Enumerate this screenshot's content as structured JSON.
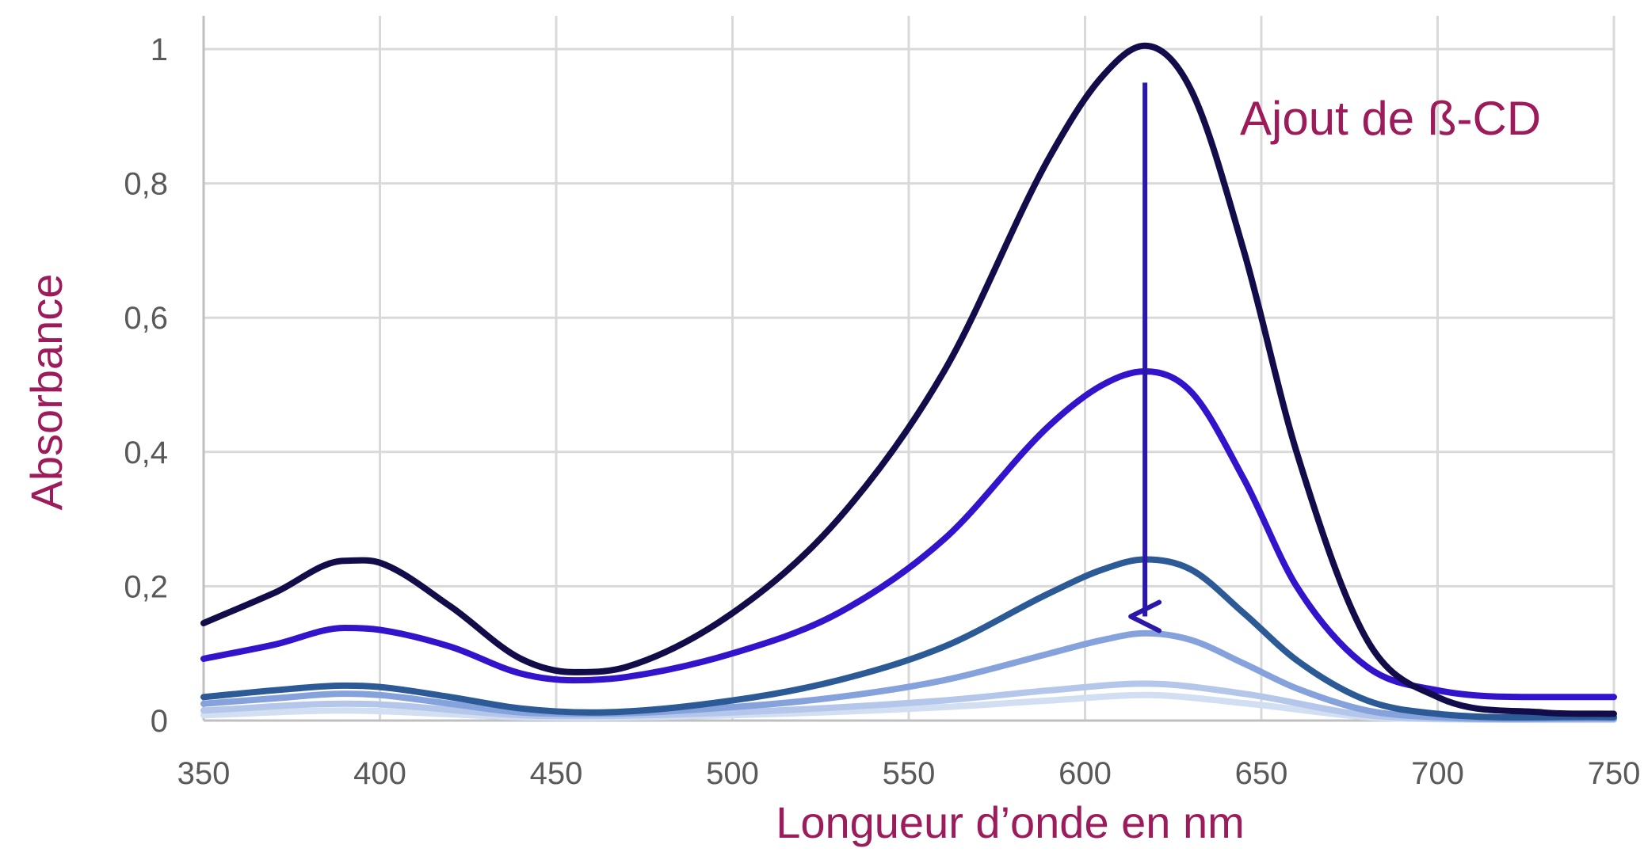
{
  "chart_data": {
    "type": "line",
    "xlabel": "Longueur d’onde en nm",
    "ylabel": "Absorbance",
    "xlim": [
      350,
      750
    ],
    "ylim": [
      0,
      1
    ],
    "x_ticks": [
      "350",
      "400",
      "450",
      "500",
      "550",
      "600",
      "650",
      "700",
      "750"
    ],
    "y_ticks": [
      "0",
      "0,2",
      "0,4",
      "0,6",
      "0,8",
      "1"
    ],
    "grid": true,
    "legend": "none",
    "annotation": {
      "text": "Ajout de ß-CD",
      "arrow_from": [
        617,
        0.95
      ],
      "arrow_to": [
        617,
        0.155
      ]
    },
    "colors": {
      "label": "#9c1b5a",
      "arrow": "#2a18a8",
      "tick": "#595959",
      "grid": "#d9d9d9"
    },
    "series": [
      {
        "color": "#120c4a",
        "x": [
          350,
          370,
          390,
          400,
          420,
          440,
          455,
          470,
          500,
          530,
          560,
          590,
          605,
          617,
          630,
          645,
          660,
          680,
          700,
          730,
          750
        ],
        "y": [
          0.145,
          0.19,
          0.238,
          0.235,
          0.17,
          0.092,
          0.072,
          0.08,
          0.16,
          0.3,
          0.52,
          0.84,
          0.96,
          1.005,
          0.94,
          0.7,
          0.4,
          0.12,
          0.035,
          0.012,
          0.01
        ]
      },
      {
        "color": "#3413cc",
        "x": [
          350,
          370,
          390,
          400,
          420,
          440,
          455,
          470,
          500,
          530,
          560,
          590,
          605,
          617,
          630,
          645,
          660,
          680,
          700,
          730,
          750
        ],
        "y": [
          0.092,
          0.113,
          0.138,
          0.135,
          0.11,
          0.07,
          0.06,
          0.065,
          0.1,
          0.16,
          0.27,
          0.44,
          0.5,
          0.52,
          0.49,
          0.36,
          0.2,
          0.08,
          0.045,
          0.035,
          0.035
        ]
      },
      {
        "color": "#2c5a96",
        "x": [
          350,
          370,
          390,
          400,
          420,
          440,
          460,
          500,
          530,
          560,
          590,
          605,
          617,
          630,
          645,
          660,
          680,
          700,
          750
        ],
        "y": [
          0.035,
          0.045,
          0.052,
          0.05,
          0.035,
          0.018,
          0.012,
          0.03,
          0.06,
          0.11,
          0.19,
          0.225,
          0.24,
          0.225,
          0.16,
          0.09,
          0.03,
          0.01,
          0.005
        ]
      },
      {
        "color": "#86a2dc",
        "x": [
          350,
          370,
          390,
          400,
          420,
          440,
          460,
          500,
          530,
          560,
          590,
          605,
          617,
          630,
          645,
          660,
          680,
          700,
          750
        ],
        "y": [
          0.025,
          0.033,
          0.04,
          0.038,
          0.025,
          0.012,
          0.01,
          0.02,
          0.035,
          0.06,
          0.1,
          0.12,
          0.13,
          0.12,
          0.085,
          0.048,
          0.015,
          0.005,
          0.003
        ]
      },
      {
        "color": "#b4c7ea",
        "x": [
          350,
          390,
          400,
          440,
          460,
          500,
          560,
          590,
          617,
          645,
          680,
          700,
          750
        ],
        "y": [
          0.015,
          0.025,
          0.024,
          0.008,
          0.007,
          0.012,
          0.03,
          0.045,
          0.055,
          0.04,
          0.008,
          0.003,
          0.002
        ]
      },
      {
        "color": "#d2def2",
        "x": [
          350,
          390,
          400,
          440,
          460,
          500,
          560,
          590,
          617,
          645,
          680,
          700,
          750
        ],
        "y": [
          0.008,
          0.015,
          0.014,
          0.005,
          0.004,
          0.008,
          0.02,
          0.03,
          0.038,
          0.026,
          0.005,
          0.002,
          0.001
        ]
      }
    ]
  }
}
